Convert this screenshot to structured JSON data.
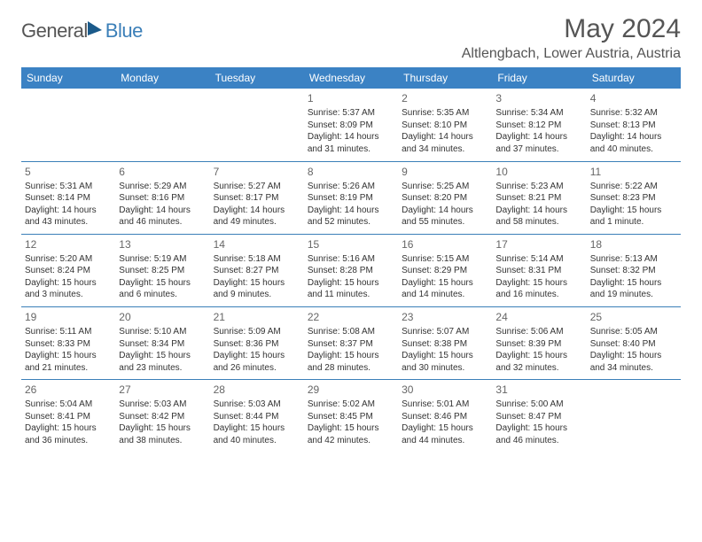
{
  "brand": {
    "general": "General",
    "blue": "Blue"
  },
  "title": "May 2024",
  "location": "Altlengbach, Lower Austria, Austria",
  "colors": {
    "header_bg": "#3b82c4",
    "header_text": "#ffffff",
    "cell_border": "#3b7fb8",
    "body_text": "#333333",
    "title_text": "#555555",
    "brand_blue": "#3b7fb8",
    "brand_gray": "#555555",
    "background": "#ffffff"
  },
  "weekdays": [
    "Sunday",
    "Monday",
    "Tuesday",
    "Wednesday",
    "Thursday",
    "Friday",
    "Saturday"
  ],
  "weeks": [
    [
      null,
      null,
      null,
      {
        "n": "1",
        "sr": "Sunrise: 5:37 AM",
        "ss": "Sunset: 8:09 PM",
        "d1": "Daylight: 14 hours",
        "d2": "and 31 minutes."
      },
      {
        "n": "2",
        "sr": "Sunrise: 5:35 AM",
        "ss": "Sunset: 8:10 PM",
        "d1": "Daylight: 14 hours",
        "d2": "and 34 minutes."
      },
      {
        "n": "3",
        "sr": "Sunrise: 5:34 AM",
        "ss": "Sunset: 8:12 PM",
        "d1": "Daylight: 14 hours",
        "d2": "and 37 minutes."
      },
      {
        "n": "4",
        "sr": "Sunrise: 5:32 AM",
        "ss": "Sunset: 8:13 PM",
        "d1": "Daylight: 14 hours",
        "d2": "and 40 minutes."
      }
    ],
    [
      {
        "n": "5",
        "sr": "Sunrise: 5:31 AM",
        "ss": "Sunset: 8:14 PM",
        "d1": "Daylight: 14 hours",
        "d2": "and 43 minutes."
      },
      {
        "n": "6",
        "sr": "Sunrise: 5:29 AM",
        "ss": "Sunset: 8:16 PM",
        "d1": "Daylight: 14 hours",
        "d2": "and 46 minutes."
      },
      {
        "n": "7",
        "sr": "Sunrise: 5:27 AM",
        "ss": "Sunset: 8:17 PM",
        "d1": "Daylight: 14 hours",
        "d2": "and 49 minutes."
      },
      {
        "n": "8",
        "sr": "Sunrise: 5:26 AM",
        "ss": "Sunset: 8:19 PM",
        "d1": "Daylight: 14 hours",
        "d2": "and 52 minutes."
      },
      {
        "n": "9",
        "sr": "Sunrise: 5:25 AM",
        "ss": "Sunset: 8:20 PM",
        "d1": "Daylight: 14 hours",
        "d2": "and 55 minutes."
      },
      {
        "n": "10",
        "sr": "Sunrise: 5:23 AM",
        "ss": "Sunset: 8:21 PM",
        "d1": "Daylight: 14 hours",
        "d2": "and 58 minutes."
      },
      {
        "n": "11",
        "sr": "Sunrise: 5:22 AM",
        "ss": "Sunset: 8:23 PM",
        "d1": "Daylight: 15 hours",
        "d2": "and 1 minute."
      }
    ],
    [
      {
        "n": "12",
        "sr": "Sunrise: 5:20 AM",
        "ss": "Sunset: 8:24 PM",
        "d1": "Daylight: 15 hours",
        "d2": "and 3 minutes."
      },
      {
        "n": "13",
        "sr": "Sunrise: 5:19 AM",
        "ss": "Sunset: 8:25 PM",
        "d1": "Daylight: 15 hours",
        "d2": "and 6 minutes."
      },
      {
        "n": "14",
        "sr": "Sunrise: 5:18 AM",
        "ss": "Sunset: 8:27 PM",
        "d1": "Daylight: 15 hours",
        "d2": "and 9 minutes."
      },
      {
        "n": "15",
        "sr": "Sunrise: 5:16 AM",
        "ss": "Sunset: 8:28 PM",
        "d1": "Daylight: 15 hours",
        "d2": "and 11 minutes."
      },
      {
        "n": "16",
        "sr": "Sunrise: 5:15 AM",
        "ss": "Sunset: 8:29 PM",
        "d1": "Daylight: 15 hours",
        "d2": "and 14 minutes."
      },
      {
        "n": "17",
        "sr": "Sunrise: 5:14 AM",
        "ss": "Sunset: 8:31 PM",
        "d1": "Daylight: 15 hours",
        "d2": "and 16 minutes."
      },
      {
        "n": "18",
        "sr": "Sunrise: 5:13 AM",
        "ss": "Sunset: 8:32 PM",
        "d1": "Daylight: 15 hours",
        "d2": "and 19 minutes."
      }
    ],
    [
      {
        "n": "19",
        "sr": "Sunrise: 5:11 AM",
        "ss": "Sunset: 8:33 PM",
        "d1": "Daylight: 15 hours",
        "d2": "and 21 minutes."
      },
      {
        "n": "20",
        "sr": "Sunrise: 5:10 AM",
        "ss": "Sunset: 8:34 PM",
        "d1": "Daylight: 15 hours",
        "d2": "and 23 minutes."
      },
      {
        "n": "21",
        "sr": "Sunrise: 5:09 AM",
        "ss": "Sunset: 8:36 PM",
        "d1": "Daylight: 15 hours",
        "d2": "and 26 minutes."
      },
      {
        "n": "22",
        "sr": "Sunrise: 5:08 AM",
        "ss": "Sunset: 8:37 PM",
        "d1": "Daylight: 15 hours",
        "d2": "and 28 minutes."
      },
      {
        "n": "23",
        "sr": "Sunrise: 5:07 AM",
        "ss": "Sunset: 8:38 PM",
        "d1": "Daylight: 15 hours",
        "d2": "and 30 minutes."
      },
      {
        "n": "24",
        "sr": "Sunrise: 5:06 AM",
        "ss": "Sunset: 8:39 PM",
        "d1": "Daylight: 15 hours",
        "d2": "and 32 minutes."
      },
      {
        "n": "25",
        "sr": "Sunrise: 5:05 AM",
        "ss": "Sunset: 8:40 PM",
        "d1": "Daylight: 15 hours",
        "d2": "and 34 minutes."
      }
    ],
    [
      {
        "n": "26",
        "sr": "Sunrise: 5:04 AM",
        "ss": "Sunset: 8:41 PM",
        "d1": "Daylight: 15 hours",
        "d2": "and 36 minutes."
      },
      {
        "n": "27",
        "sr": "Sunrise: 5:03 AM",
        "ss": "Sunset: 8:42 PM",
        "d1": "Daylight: 15 hours",
        "d2": "and 38 minutes."
      },
      {
        "n": "28",
        "sr": "Sunrise: 5:03 AM",
        "ss": "Sunset: 8:44 PM",
        "d1": "Daylight: 15 hours",
        "d2": "and 40 minutes."
      },
      {
        "n": "29",
        "sr": "Sunrise: 5:02 AM",
        "ss": "Sunset: 8:45 PM",
        "d1": "Daylight: 15 hours",
        "d2": "and 42 minutes."
      },
      {
        "n": "30",
        "sr": "Sunrise: 5:01 AM",
        "ss": "Sunset: 8:46 PM",
        "d1": "Daylight: 15 hours",
        "d2": "and 44 minutes."
      },
      {
        "n": "31",
        "sr": "Sunrise: 5:00 AM",
        "ss": "Sunset: 8:47 PM",
        "d1": "Daylight: 15 hours",
        "d2": "and 46 minutes."
      },
      null
    ]
  ]
}
